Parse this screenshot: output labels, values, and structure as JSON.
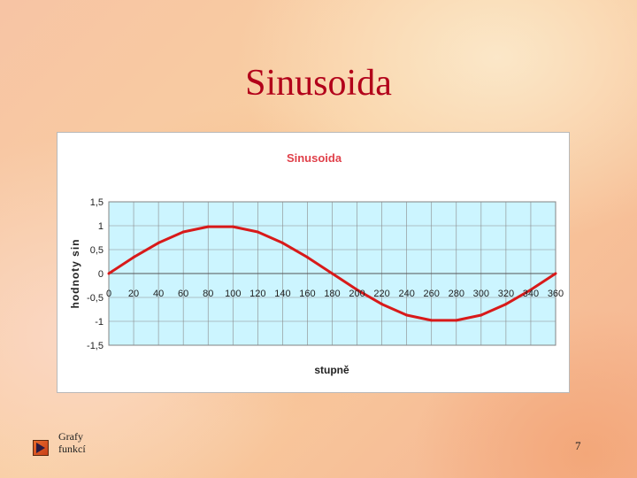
{
  "slide": {
    "title": "Sinusoida",
    "footer_line1": "Grafy",
    "footer_line2": "funkcí",
    "page_number": "7"
  },
  "chart_data": {
    "type": "line",
    "title": "Sinusoida",
    "xlabel": "stupně",
    "ylabel": "hodnoty sin",
    "xlim": [
      0,
      360
    ],
    "ylim": [
      -1.5,
      1.5
    ],
    "xticks": [
      0,
      20,
      40,
      60,
      80,
      100,
      120,
      140,
      160,
      180,
      200,
      220,
      240,
      260,
      280,
      300,
      320,
      340,
      360
    ],
    "yticks": [
      "1,5",
      "1",
      "0,5",
      "0",
      "-0,5",
      "-1",
      "-1,5"
    ],
    "grid": true,
    "colors": {
      "line": "#d81a1a",
      "plot_bg": "#ccf5ff",
      "grid": "#8a8a8a",
      "title": "#e0404a"
    },
    "x": [
      0,
      20,
      40,
      60,
      80,
      100,
      120,
      140,
      160,
      180,
      200,
      220,
      240,
      260,
      280,
      300,
      320,
      340,
      360
    ],
    "y": [
      0,
      0.34,
      0.64,
      0.87,
      0.98,
      0.98,
      0.87,
      0.64,
      0.34,
      0,
      -0.34,
      -0.64,
      -0.87,
      -0.98,
      -0.98,
      -0.87,
      -0.64,
      -0.34,
      0
    ]
  }
}
